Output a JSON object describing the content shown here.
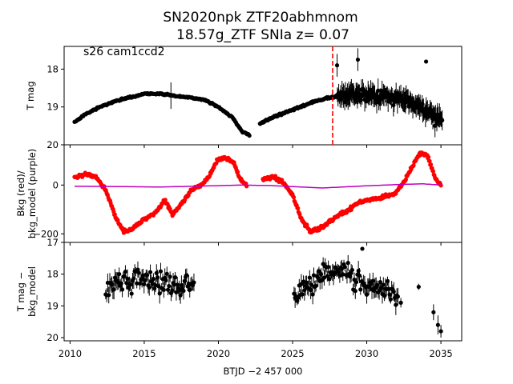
{
  "chart_data": {
    "type": "scatter",
    "title_line1": "SN2020npk  ZTF20abhmnom",
    "title_line2": "18.57g_ZTF SNIa z= 0.07",
    "annotation": "s26 cam1ccd2",
    "xlabel": "BTJD −2 457 000",
    "xlim": [
      2009.6,
      2036.4
    ],
    "x_ticks": [
      2010,
      2015,
      2020,
      2025,
      2030,
      2035
    ],
    "marker_x": 2027.7,
    "colors": {
      "data": "#000000",
      "bkg": "#ff0000",
      "bkg_model": "#bf00bf",
      "marker": "#ff0000"
    },
    "panels": [
      {
        "id": "tmag",
        "ylabel": [
          "T mag"
        ],
        "ylim": [
          20,
          17.4
        ],
        "y_ticks": [
          18,
          19,
          20
        ],
        "segments": [
          {
            "x": [
              2010.3,
              2011,
              2012,
              2013,
              2014,
              2015,
              2016,
              2017,
              2018,
              2019,
              2020,
              2021,
              2021.6,
              2022.1
            ],
            "y": [
              19.4,
              19.2,
              19.0,
              18.85,
              18.75,
              18.65,
              18.65,
              18.7,
              18.75,
              18.8,
              19.0,
              19.3,
              19.65,
              19.75
            ],
            "err": 0.08
          },
          {
            "x": [
              2022.8,
              2023.5,
              2024.5,
              2025.5,
              2026.5,
              2027.5,
              2028.5,
              2029.5,
              2030.5,
              2031.5,
              2032.5,
              2033.5,
              2034.5,
              2035.1
            ],
            "y": [
              19.45,
              19.3,
              19.15,
              19.0,
              18.85,
              18.75,
              18.7,
              18.65,
              18.7,
              18.75,
              18.8,
              18.95,
              19.2,
              19.35
            ],
            "err": 0.12,
            "noisy_from": 2028.0
          }
        ],
        "outliers": [
          {
            "x": 2016.8,
            "y": 18.7,
            "err": 0.35
          },
          {
            "x": 2028.0,
            "y": 17.9,
            "err": 0.3
          },
          {
            "x": 2029.4,
            "y": 17.75,
            "err": 0.3
          },
          {
            "x": 2034.0,
            "y": 17.8,
            "err": 0.05
          },
          {
            "x": 2034.6,
            "y": 19.5,
            "err": 0.3
          }
        ]
      },
      {
        "id": "bkg",
        "ylabel": [
          "Bkg (red)/",
          "bkg_model (purple)"
        ],
        "ylim": [
          -235,
          165
        ],
        "y_ticks": [
          -200,
          0
        ],
        "bkg_segments": [
          {
            "x": [
              2010.3,
              2011,
              2011.8,
              2012.4,
              2013,
              2013.6,
              2014.2,
              2015,
              2015.8,
              2016.4,
              2016.9,
              2017.5,
              2018.2,
              2018.9,
              2019.4,
              2019.9,
              2020.4,
              2021,
              2021.5,
              2021.9
            ],
            "y": [
              30,
              45,
              30,
              -20,
              -120,
              -190,
              -180,
              -140,
              -110,
              -60,
              -120,
              -80,
              -20,
              0,
              40,
              100,
              115,
              95,
              20,
              0
            ]
          },
          {
            "x": [
              2023.0,
              2023.6,
              2024.3,
              2025,
              2025.6,
              2026.2,
              2026.8,
              2027.5,
              2028.2,
              2028.8,
              2029.5,
              2030.2,
              2031,
              2031.8,
              2032.5,
              2033.1,
              2033.6,
              2034.1,
              2034.6,
              2035.0
            ],
            "y": [
              20,
              35,
              15,
              -40,
              -140,
              -190,
              -180,
              -150,
              -120,
              -100,
              -70,
              -60,
              -50,
              -40,
              10,
              80,
              130,
              120,
              30,
              0
            ]
          }
        ],
        "model": {
          "x": [
            2010.3,
            2013,
            2016,
            2019,
            2021.5,
            2023.5,
            2027,
            2030,
            2032.5,
            2033.8,
            2035.0
          ],
          "y": [
            -5,
            -6,
            -8,
            -4,
            0,
            -2,
            -12,
            -3,
            3,
            5,
            0
          ]
        }
      },
      {
        "id": "diff",
        "ylabel": [
          "T mag −",
          "bkg_model"
        ],
        "ylim": [
          20.1,
          17.0
        ],
        "y_ticks": [
          17,
          18,
          19,
          20
        ],
        "segments": [
          {
            "x": [
              2012.4,
              2013.5,
              2014.5,
              2015.5,
              2016.5,
              2017.5,
              2018.4
            ],
            "y": [
              18.5,
              18.2,
              18.1,
              18.2,
              18.3,
              18.4,
              18.5
            ],
            "scatter": 0.55,
            "err": 0.22
          },
          {
            "x": [
              2025.1,
              2026,
              2027,
              2028,
              2029,
              2030,
              2031,
              2032.1
            ],
            "y": [
              18.6,
              18.3,
              18.0,
              17.9,
              18.1,
              18.3,
              18.4,
              18.6
            ],
            "scatter": 0.55,
            "err": 0.22
          }
        ],
        "outliers": [
          {
            "x": 2029.7,
            "y": 17.2,
            "err": 0.05
          },
          {
            "x": 2033.5,
            "y": 18.4,
            "err": 0.1
          },
          {
            "x": 2034.5,
            "y": 19.2,
            "err": 0.25
          },
          {
            "x": 2034.8,
            "y": 19.6,
            "err": 0.3
          },
          {
            "x": 2035.0,
            "y": 19.8,
            "err": 0.2
          },
          {
            "x": 2032.3,
            "y": 18.9,
            "err": 0.15
          }
        ]
      }
    ]
  }
}
